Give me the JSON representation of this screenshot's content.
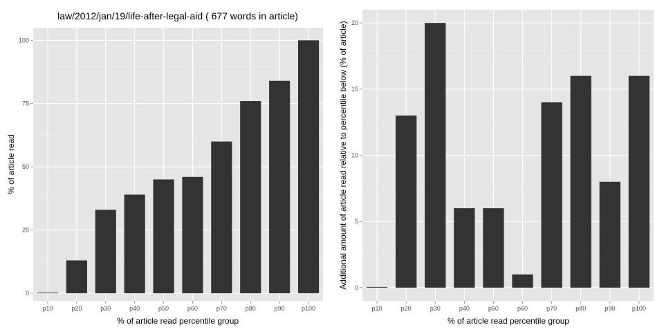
{
  "colors": {
    "panel_background": "#e5e5e5",
    "grid_major": "#ffffff",
    "grid_minor": "#f2f2f2",
    "bar_fill": "#333333",
    "tick_text": "#4d4d4d",
    "axis_text": "#000000",
    "page_background": "#ffffff"
  },
  "chart_data": [
    {
      "type": "bar",
      "title": "law/2012/jan/19/life-after-legal-aid ( 677 words in article)",
      "xlabel": "% of article read percentile group",
      "ylabel": "% of article read",
      "categories": [
        "p10",
        "p20",
        "p30",
        "p40",
        "p50",
        "p60",
        "p70",
        "p80",
        "p90",
        "p100"
      ],
      "values": [
        0,
        13,
        33,
        39,
        45,
        46,
        60,
        76,
        84,
        100
      ],
      "ylim": [
        -3,
        105
      ],
      "yticks": [
        0,
        25,
        50,
        75,
        100
      ],
      "grid": true
    },
    {
      "type": "bar",
      "title": "",
      "xlabel": "% of article read percentile group",
      "ylabel": "Additional amount of article read relative to percentile below (% of article)",
      "categories": [
        "p10",
        "p20",
        "p30",
        "p40",
        "p50",
        "p60",
        "p70",
        "p80",
        "p90",
        "p100"
      ],
      "values": [
        0,
        13,
        20,
        6,
        6,
        1,
        14,
        16,
        8,
        16
      ],
      "ylim": [
        -1,
        21
      ],
      "yticks": [
        0,
        5,
        10,
        15,
        20
      ],
      "grid": true
    }
  ]
}
